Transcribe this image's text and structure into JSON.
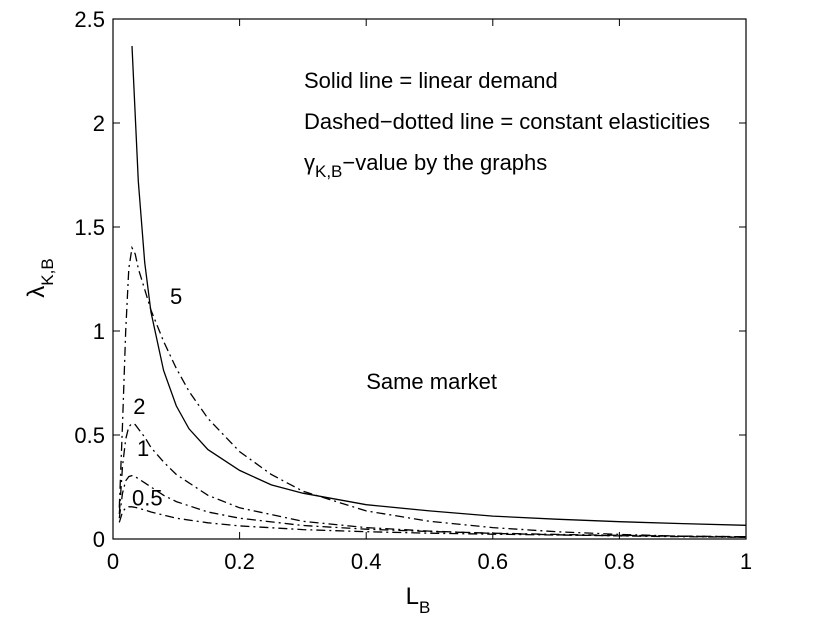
{
  "chart_data": {
    "type": "line",
    "xlabel": "L",
    "xlabel_subscript": "B",
    "ylabel": "λ",
    "ylabel_subscript": "K,B",
    "xlim": [
      0,
      1
    ],
    "ylim": [
      0,
      2.5
    ],
    "x_ticks": [
      0,
      0.2,
      0.4,
      0.6,
      0.8,
      1
    ],
    "x_tick_labels": [
      "0",
      "0.2",
      "0.4",
      "0.6",
      "0.8",
      "1"
    ],
    "y_ticks": [
      0,
      0.5,
      1,
      1.5,
      2,
      2.5
    ],
    "y_tick_labels": [
      "0",
      "0.5",
      "1",
      "1.5",
      "2",
      "2.5"
    ],
    "grid": false,
    "legend_text": {
      "line1": "Solid line = linear demand",
      "line2": "Dashed−dotted line = constant elasticities",
      "line3_symbol": "γ",
      "line3_subscript": "K,B",
      "line3_rest": "−value by the graphs"
    },
    "annotations": [
      {
        "text": "Same market",
        "x": 0.4,
        "y": 0.72
      },
      {
        "text": "5",
        "x": 0.09,
        "y": 1.13
      },
      {
        "text": "2",
        "x": 0.032,
        "y": 0.6
      },
      {
        "text": "1",
        "x": 0.038,
        "y": 0.4
      },
      {
        "text": "0.5",
        "x": 0.03,
        "y": 0.16
      }
    ],
    "series": [
      {
        "style": "solid",
        "x": [
          0.03,
          0.04,
          0.05,
          0.06,
          0.08,
          0.1,
          0.12,
          0.15,
          0.2,
          0.25,
          0.3,
          0.4,
          0.5,
          0.6,
          0.7,
          0.8,
          0.9,
          1.0
        ],
        "y": [
          2.37,
          1.72,
          1.33,
          1.09,
          0.81,
          0.64,
          0.53,
          0.43,
          0.33,
          0.26,
          0.22,
          0.165,
          0.135,
          0.11,
          0.095,
          0.083,
          0.074,
          0.066
        ]
      },
      {
        "style": "dashdot",
        "label": "5",
        "x": [
          0.01,
          0.015,
          0.02,
          0.025,
          0.03,
          0.035,
          0.04,
          0.05,
          0.06,
          0.08,
          0.1,
          0.12,
          0.15,
          0.2,
          0.25,
          0.3,
          0.4,
          0.5,
          0.6,
          0.7,
          0.8,
          0.9,
          1.0
        ],
        "y": [
          0.15,
          0.55,
          1.0,
          1.3,
          1.4,
          1.37,
          1.3,
          1.2,
          1.1,
          0.95,
          0.82,
          0.71,
          0.58,
          0.42,
          0.31,
          0.23,
          0.135,
          0.085,
          0.055,
          0.035,
          0.022,
          0.013,
          0.008
        ]
      },
      {
        "style": "dashdot",
        "label": "2",
        "x": [
          0.01,
          0.015,
          0.02,
          0.025,
          0.03,
          0.035,
          0.04,
          0.05,
          0.06,
          0.08,
          0.1,
          0.15,
          0.2,
          0.3,
          0.4,
          0.5,
          0.6,
          0.7,
          0.8,
          0.9,
          1.0
        ],
        "y": [
          0.12,
          0.35,
          0.48,
          0.54,
          0.555,
          0.55,
          0.53,
          0.49,
          0.44,
          0.37,
          0.31,
          0.21,
          0.15,
          0.085,
          0.055,
          0.038,
          0.027,
          0.02,
          0.015,
          0.011,
          0.008
        ]
      },
      {
        "style": "dashdot",
        "label": "1",
        "x": [
          0.01,
          0.015,
          0.02,
          0.025,
          0.03,
          0.035,
          0.04,
          0.05,
          0.06,
          0.08,
          0.1,
          0.15,
          0.2,
          0.3,
          0.4,
          0.5,
          0.6,
          0.7,
          0.8,
          0.9,
          1.0
        ],
        "y": [
          0.1,
          0.22,
          0.28,
          0.3,
          0.305,
          0.3,
          0.29,
          0.27,
          0.25,
          0.21,
          0.18,
          0.13,
          0.1,
          0.065,
          0.047,
          0.036,
          0.028,
          0.022,
          0.018,
          0.014,
          0.011
        ]
      },
      {
        "style": "dashdot",
        "label": "0.5",
        "x": [
          0.01,
          0.015,
          0.02,
          0.025,
          0.03,
          0.035,
          0.04,
          0.05,
          0.06,
          0.08,
          0.1,
          0.15,
          0.2,
          0.3,
          0.4,
          0.5,
          0.6,
          0.7,
          0.8,
          0.9,
          1.0
        ],
        "y": [
          0.08,
          0.13,
          0.15,
          0.155,
          0.155,
          0.152,
          0.148,
          0.14,
          0.13,
          0.115,
          0.1,
          0.078,
          0.063,
          0.045,
          0.035,
          0.028,
          0.023,
          0.019,
          0.016,
          0.013,
          0.011
        ]
      }
    ]
  }
}
